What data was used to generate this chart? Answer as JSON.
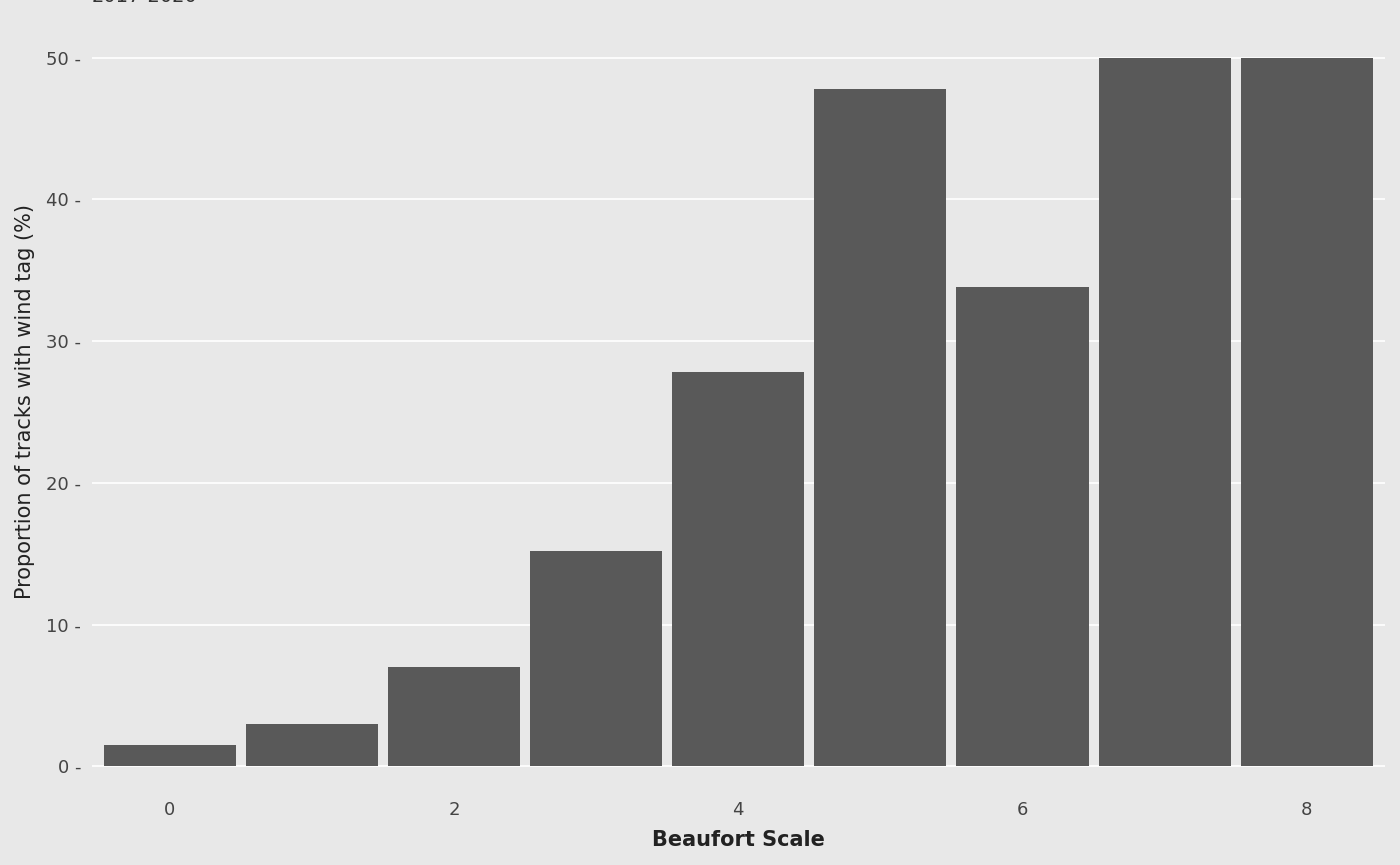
{
  "categories": [
    0,
    1,
    2,
    3,
    4,
    5,
    6,
    7,
    8
  ],
  "values": [
    1.5,
    3.0,
    7.0,
    15.2,
    27.8,
    47.8,
    33.8,
    50.0,
    50.0
  ],
  "bar_color": "#595959",
  "background_color": "#E8E8E8",
  "panel_background": "#E8E8E8",
  "grid_color": "#FFFFFF",
  "xlabel": "Beaufort Scale",
  "ylabel": "Proportion of tracks with wind tag (%)",
  "ylim": [
    -1.5,
    53
  ],
  "yticks": [
    0,
    10,
    20,
    30,
    40,
    50
  ],
  "xticks": [
    0,
    2,
    4,
    6,
    8
  ],
  "title_fontsize": 19,
  "subtitle_fontsize": 14,
  "axis_label_fontsize": 15,
  "tick_fontsize": 13,
  "bar_width": 0.93
}
